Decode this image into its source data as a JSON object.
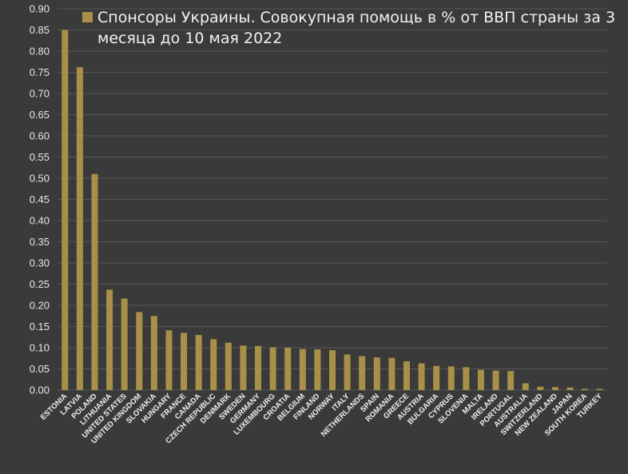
{
  "chart_data": {
    "type": "bar",
    "legend": {
      "position": "top-left",
      "lines": [
        "Спонсоры Украины. Совокупная помощь в % от ВВП страны за 3",
        "месяца до 10 мая 2022"
      ]
    },
    "ylim": [
      0,
      0.9
    ],
    "yticks": [
      "0.00",
      "0.05",
      "0.10",
      "0.15",
      "0.20",
      "0.25",
      "0.30",
      "0.35",
      "0.40",
      "0.45",
      "0.50",
      "0.55",
      "0.60",
      "0.65",
      "0.70",
      "0.75",
      "0.80",
      "0.85",
      "0.90"
    ],
    "grid": true,
    "colors": {
      "bar": "#a89048",
      "background": "#3a3a3a",
      "grid": "#555555",
      "text": "#e6e6e6"
    },
    "categories": [
      "ESTONIA",
      "LATVIA",
      "POLAND",
      "LITHUANIA",
      "UNITED STATES",
      "UNITED KINGDOM",
      "SLOVAKIA",
      "HUNGARY",
      "FRANCE",
      "CANADA",
      "CZECH REPUBLIC",
      "DENMARK",
      "SWEDEN",
      "GERMANY",
      "LUXEMBOURG",
      "CROATIA",
      "BELGIUM",
      "FINLAND",
      "NORWAY",
      "ITALY",
      "NETHERLANDS",
      "SPAIN",
      "ROMANIA",
      "GREECE",
      "AUSTRIA",
      "BULGARIA",
      "CYPRUS",
      "SLOVENIA",
      "MALTA",
      "IRELAND",
      "PORTUGAL",
      "AUSTRALIA",
      "SWITZERLAND",
      "NEW ZEALAND",
      "JAPAN",
      "SOUTH KOREA",
      "TURKEY"
    ],
    "values": [
      0.85,
      0.762,
      0.51,
      0.237,
      0.216,
      0.184,
      0.175,
      0.141,
      0.135,
      0.13,
      0.12,
      0.112,
      0.105,
      0.104,
      0.101,
      0.1,
      0.097,
      0.096,
      0.094,
      0.084,
      0.08,
      0.077,
      0.076,
      0.068,
      0.063,
      0.057,
      0.056,
      0.054,
      0.048,
      0.046,
      0.045,
      0.016,
      0.008,
      0.007,
      0.006,
      0.003,
      0.003
    ]
  }
}
